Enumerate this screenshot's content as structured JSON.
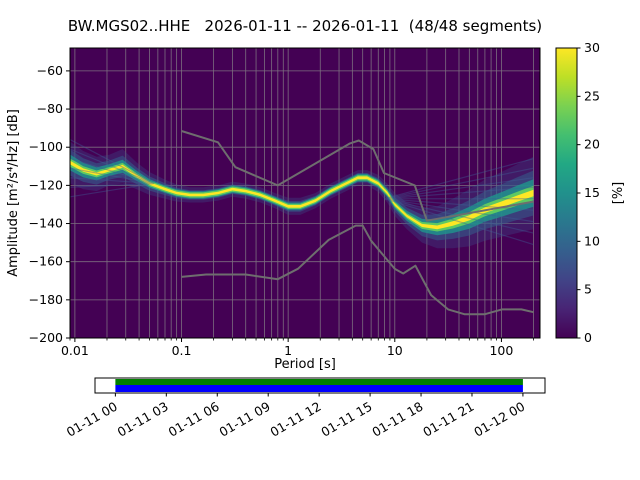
{
  "chart_data": {
    "type": "heatmap",
    "title": "BW.MGS02..HHE   2026-01-11 -- 2026-01-11  (48/48 segments)",
    "xlabel": "Period [s]",
    "ylabel": "Amplitude [m²/s⁴/Hz] [dB]",
    "xscale": "log",
    "xlim": [
      0.009,
      230
    ],
    "ylim": [
      -200,
      -48
    ],
    "xticks": [
      0.01,
      0.1,
      1,
      10,
      100
    ],
    "xtick_labels": [
      "0.01",
      "0.1",
      "1",
      "10",
      "100"
    ],
    "yticks": [
      -200,
      -180,
      -160,
      -140,
      -120,
      -100,
      -80,
      -60
    ],
    "grid": true,
    "colors": {
      "background": "#440154",
      "grid": "#8a8a8a",
      "noise_model": "#6e6e6e",
      "spread": "#3f5e96",
      "core": "#fde725"
    },
    "colorbar": {
      "label": "[%]",
      "min": 0,
      "max": 30,
      "ticks": [
        0,
        5,
        10,
        15,
        20,
        25,
        30
      ],
      "colormap": "viridis"
    },
    "ppsd": {
      "description": "PPSD mode amplitude [dB] vs period [s] with distribution half-width [dB]",
      "periods": [
        0.009,
        0.012,
        0.016,
        0.021,
        0.028,
        0.038,
        0.05,
        0.07,
        0.09,
        0.12,
        0.16,
        0.22,
        0.3,
        0.4,
        0.55,
        0.75,
        1.0,
        1.3,
        1.8,
        2.5,
        3.5,
        4.5,
        5.5,
        7,
        8.5,
        10,
        13,
        18,
        25,
        35,
        50,
        70,
        100,
        140,
        200
      ],
      "mode_db": [
        -108,
        -112,
        -114,
        -112,
        -110,
        -115,
        -119,
        -122,
        -124,
        -125,
        -125,
        -124,
        -122,
        -123,
        -125,
        -128,
        -131,
        -131,
        -128,
        -123,
        -119,
        -116,
        -116,
        -119,
        -124,
        -130,
        -136,
        -141,
        -142,
        -140,
        -137,
        -133,
        -130,
        -127,
        -124
      ],
      "spread_db": [
        11,
        10,
        9,
        8,
        9,
        7,
        6,
        5,
        4.5,
        4,
        4,
        4,
        4,
        4,
        4,
        4,
        4.5,
        4.5,
        4,
        4,
        4,
        4,
        4,
        4.5,
        5,
        6,
        7,
        9,
        11,
        13,
        15,
        16,
        17,
        18,
        19
      ]
    },
    "noise_models": {
      "nhnm": [
        [
          0.1,
          -91.5
        ],
        [
          0.22,
          -97.4
        ],
        [
          0.32,
          -110.5
        ],
        [
          0.8,
          -120
        ],
        [
          3.8,
          -98
        ],
        [
          4.6,
          -96.5
        ],
        [
          6.3,
          -101
        ],
        [
          7.9,
          -113.5
        ],
        [
          15.4,
          -120
        ],
        [
          20,
          -138.5
        ],
        [
          200,
          -128.5
        ]
      ],
      "nlnm": [
        [
          0.1,
          -168
        ],
        [
          0.17,
          -166.7
        ],
        [
          0.4,
          -166.7
        ],
        [
          0.8,
          -169.2
        ],
        [
          1.24,
          -163.7
        ],
        [
          2.4,
          -148.6
        ],
        [
          4.3,
          -141.1
        ],
        [
          5,
          -141.1
        ],
        [
          6,
          -149
        ],
        [
          10,
          -163.8
        ],
        [
          12,
          -166.2
        ],
        [
          15.6,
          -162.1
        ],
        [
          21.9,
          -177.5
        ],
        [
          31.6,
          -185
        ],
        [
          45,
          -187.5
        ],
        [
          70,
          -187.5
        ],
        [
          101,
          -185
        ],
        [
          154,
          -185
        ],
        [
          200,
          -186.5
        ]
      ]
    },
    "spread_fan": {
      "right": {
        "origin_period": 8,
        "origin_db": -127,
        "end_period": 200,
        "end_dbs": [
          -106,
          -111,
          -116,
          -121,
          -127,
          -133,
          -139,
          -145,
          -151
        ]
      },
      "left": {
        "origin_period": 0.055,
        "origin_db": -119,
        "end_period": 0.009,
        "end_dbs": [
          -96,
          -101,
          -106,
          -111,
          -116,
          -121,
          -126
        ]
      }
    },
    "timeline": {
      "tick_labels": [
        "01-11 00",
        "01-11 03",
        "01-11 06",
        "01-11 09",
        "01-11 12",
        "01-11 15",
        "01-11 18",
        "01-11 21",
        "01-12 00"
      ],
      "tick_hours": [
        0,
        3,
        6,
        9,
        12,
        15,
        18,
        21,
        24
      ],
      "range_hours": [
        -1.2,
        25.3
      ],
      "coverage_hours": [
        0,
        24
      ],
      "data_color": "#0000ff",
      "processed_color": "#008000"
    }
  }
}
